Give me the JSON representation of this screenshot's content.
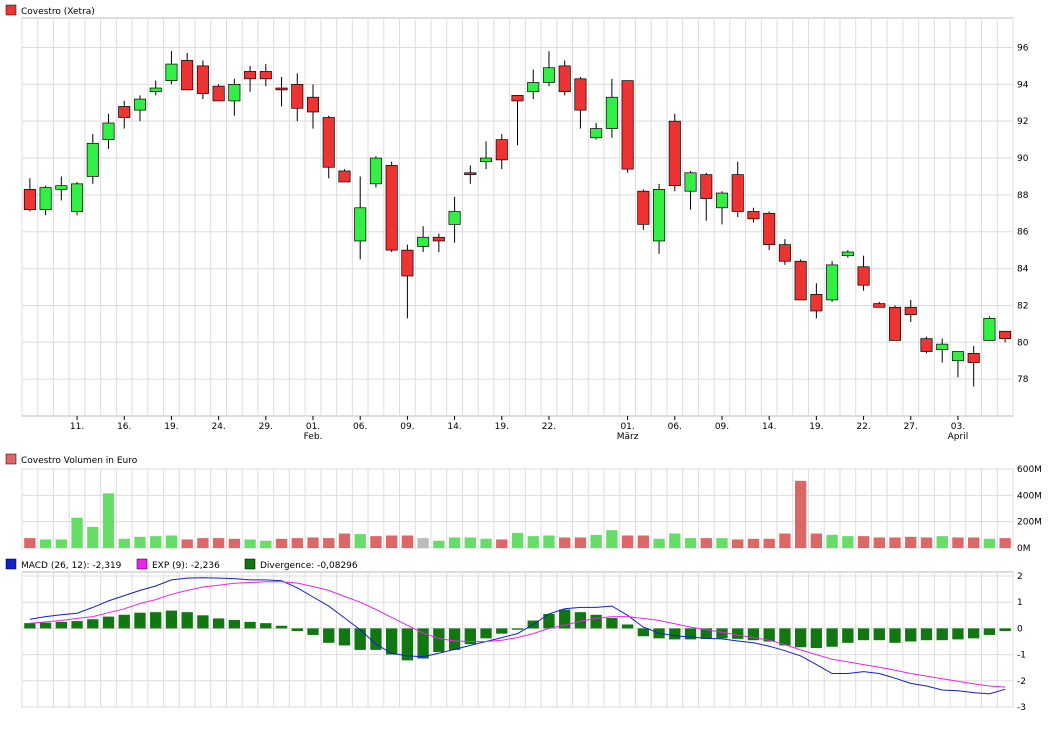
{
  "colors": {
    "up": "#33ee44",
    "down": "#ee3333",
    "grid": "#dddddd",
    "frame": "#bbbbbb",
    "macd": "#1020cc",
    "signal": "#ee22ee",
    "divergence": "#117711",
    "volume_up": "#66dd66",
    "volume_down": "#dd6666",
    "volume_neutral": "#bbbbbb"
  },
  "chart_data": [
    {
      "type": "candlestick",
      "legend": "Covestro (Xetra)",
      "ylim": [
        76,
        97.6
      ],
      "yticks": [
        78,
        80,
        82,
        84,
        86,
        88,
        90,
        92,
        94,
        96
      ],
      "ytick_labels": [
        "78",
        "80",
        "82",
        "84",
        "86",
        "88",
        "90",
        "92",
        "94",
        "96"
      ],
      "xtick_labels": [
        "11.",
        "16.",
        "19.",
        "24.",
        "29.",
        "01.",
        "06.",
        "09.",
        "14.",
        "19.",
        "22.",
        "01.",
        "06.",
        "09.",
        "14.",
        "19.",
        "22.",
        "27.",
        "03."
      ],
      "xtick_index": [
        3,
        6,
        9,
        12,
        15,
        18,
        21,
        24,
        27,
        30,
        33,
        38,
        41,
        44,
        47,
        50,
        53,
        56,
        59
      ],
      "month_labels": [
        {
          "index": 18,
          "text": "Feb."
        },
        {
          "index": 38,
          "text": "März"
        },
        {
          "index": 59,
          "text": "April"
        }
      ],
      "ohlc": [
        [
          88.3,
          88.9,
          87.1,
          87.2
        ],
        [
          87.2,
          88.5,
          86.9,
          88.4
        ],
        [
          88.3,
          89.0,
          87.7,
          88.5
        ],
        [
          87.1,
          88.7,
          86.9,
          88.6
        ],
        [
          89.0,
          91.3,
          88.6,
          90.8
        ],
        [
          91.0,
          92.4,
          90.5,
          91.9
        ],
        [
          92.8,
          93.1,
          91.6,
          92.2
        ],
        [
          92.6,
          93.4,
          92.0,
          93.2
        ],
        [
          93.6,
          94.2,
          93.4,
          93.8
        ],
        [
          94.2,
          95.8,
          94.0,
          95.1
        ],
        [
          95.3,
          95.7,
          93.8,
          93.7
        ],
        [
          95.0,
          95.3,
          93.2,
          93.5
        ],
        [
          93.9,
          94.0,
          93.1,
          93.1
        ],
        [
          93.1,
          94.3,
          92.3,
          94.0
        ],
        [
          94.7,
          95.0,
          93.6,
          94.3
        ],
        [
          94.7,
          95.1,
          93.9,
          94.3
        ],
        [
          93.8,
          94.4,
          92.8,
          93.7
        ],
        [
          94.0,
          94.6,
          92.0,
          92.7
        ],
        [
          93.3,
          94.0,
          91.6,
          92.5
        ],
        [
          92.2,
          92.3,
          88.9,
          89.5
        ],
        [
          89.3,
          89.4,
          88.7,
          88.7
        ],
        [
          85.5,
          89.0,
          84.5,
          87.3
        ],
        [
          88.6,
          90.1,
          88.4,
          90.0
        ],
        [
          89.6,
          89.8,
          84.9,
          85.0
        ],
        [
          85.0,
          85.3,
          81.3,
          83.6
        ],
        [
          85.2,
          86.3,
          84.9,
          85.7
        ],
        [
          85.7,
          85.9,
          84.9,
          85.5
        ],
        [
          86.4,
          87.9,
          85.4,
          87.1
        ],
        [
          89.2,
          89.6,
          88.6,
          89.1
        ],
        [
          89.8,
          90.9,
          89.4,
          90.0
        ],
        [
          91.0,
          91.3,
          89.4,
          89.9
        ],
        [
          93.4,
          93.4,
          90.7,
          93.1
        ],
        [
          93.6,
          94.8,
          93.2,
          94.1
        ],
        [
          94.1,
          95.8,
          93.9,
          94.9
        ],
        [
          95.0,
          95.3,
          93.4,
          93.6
        ],
        [
          94.3,
          94.4,
          91.6,
          92.6
        ],
        [
          91.1,
          91.9,
          91.0,
          91.6
        ],
        [
          91.6,
          94.3,
          91.1,
          93.3
        ],
        [
          94.2,
          94.2,
          89.2,
          89.4
        ],
        [
          88.2,
          88.3,
          86.1,
          86.4
        ],
        [
          85.5,
          88.6,
          84.8,
          88.3
        ],
        [
          92.0,
          92.4,
          88.2,
          88.5
        ],
        [
          88.2,
          89.3,
          87.2,
          89.2
        ],
        [
          89.1,
          89.2,
          86.6,
          87.8
        ],
        [
          87.3,
          88.2,
          86.4,
          88.1
        ],
        [
          89.1,
          89.8,
          86.8,
          87.1
        ],
        [
          87.1,
          87.3,
          86.5,
          86.7
        ],
        [
          87.0,
          87.1,
          85.0,
          85.3
        ],
        [
          85.3,
          85.6,
          84.2,
          84.4
        ],
        [
          84.4,
          84.5,
          82.3,
          82.3
        ],
        [
          82.6,
          83.2,
          81.3,
          81.7
        ],
        [
          82.3,
          84.4,
          82.2,
          84.2
        ],
        [
          84.7,
          85.0,
          84.6,
          84.9
        ],
        [
          84.1,
          84.7,
          82.8,
          83.1
        ],
        [
          82.1,
          82.2,
          81.9,
          81.9
        ],
        [
          81.9,
          82.0,
          80.1,
          80.1
        ],
        [
          81.9,
          82.3,
          81.1,
          81.5
        ],
        [
          80.2,
          80.3,
          79.4,
          79.5
        ],
        [
          79.6,
          80.2,
          78.9,
          79.9
        ],
        [
          79.0,
          79.4,
          78.1,
          79.5
        ],
        [
          79.4,
          79.8,
          77.6,
          78.9
        ],
        [
          80.1,
          81.4,
          80.1,
          81.3
        ],
        [
          80.6,
          80.6,
          80.0,
          80.2
        ]
      ]
    },
    {
      "type": "bar",
      "legend": "Covestro Volumen in Euro",
      "ylim": [
        0,
        600
      ],
      "yticks": [
        0,
        200,
        400,
        600
      ],
      "ytick_labels": [
        "0M",
        "200M",
        "400M",
        "600M"
      ],
      "values": [
        75,
        65,
        65,
        230,
        160,
        415,
        70,
        85,
        90,
        95,
        65,
        75,
        75,
        70,
        65,
        55,
        70,
        75,
        80,
        75,
        110,
        105,
        90,
        95,
        95,
        75,
        55,
        80,
        80,
        70,
        65,
        115,
        90,
        95,
        80,
        80,
        100,
        135,
        95,
        95,
        70,
        110,
        75,
        75,
        75,
        65,
        70,
        70,
        110,
        510,
        110,
        100,
        90,
        90,
        80,
        80,
        85,
        80,
        90,
        80,
        80,
        70,
        75
      ],
      "direction": [
        "d",
        "u",
        "u",
        "u",
        "u",
        "u",
        "u",
        "u",
        "u",
        "u",
        "d",
        "d",
        "d",
        "d",
        "u",
        "u",
        "d",
        "d",
        "d",
        "d",
        "d",
        "u",
        "d",
        "d",
        "d",
        "n",
        "u",
        "u",
        "u",
        "u",
        "d",
        "u",
        "u",
        "u",
        "d",
        "d",
        "u",
        "u",
        "d",
        "d",
        "u",
        "u",
        "u",
        "d",
        "u",
        "d",
        "d",
        "d",
        "d",
        "d",
        "d",
        "u",
        "u",
        "d",
        "d",
        "d",
        "d",
        "d",
        "u",
        "d",
        "d",
        "u",
        "d"
      ]
    },
    {
      "type": "line+bar",
      "ylim": [
        -3,
        2
      ],
      "yticks": [
        -3,
        -2,
        -1,
        0,
        1,
        2
      ],
      "ytick_labels": [
        "-3",
        "-2",
        "-1",
        "0",
        "1",
        "2"
      ],
      "legend_items": [
        "MACD (26, 12): -2,319",
        "EXP (9): -2,236",
        "Divergence: -0,08296"
      ],
      "series": [
        {
          "name": "MACD (26, 12)",
          "values": [
            0.35,
            0.45,
            0.52,
            0.58,
            0.8,
            1.05,
            1.25,
            1.45,
            1.62,
            1.85,
            1.92,
            1.93,
            1.92,
            1.9,
            1.85,
            1.85,
            1.82,
            1.55,
            1.2,
            0.85,
            0.4,
            -0.05,
            -0.6,
            -0.95,
            -1.05,
            -1.08,
            -0.95,
            -0.8,
            -0.65,
            -0.5,
            -0.35,
            -0.2,
            0.15,
            0.55,
            0.75,
            0.8,
            0.8,
            0.85,
            0.5,
            0.05,
            -0.18,
            -0.28,
            -0.33,
            -0.38,
            -0.4,
            -0.48,
            -0.55,
            -0.68,
            -0.85,
            -1.05,
            -1.38,
            -1.72,
            -1.72,
            -1.65,
            -1.72,
            -1.9,
            -2.1,
            -2.2,
            -2.35,
            -2.38,
            -2.45,
            -2.5,
            -2.32
          ]
        },
        {
          "name": "EXP (9)",
          "values": [
            0.2,
            0.25,
            0.3,
            0.38,
            0.45,
            0.6,
            0.75,
            0.95,
            1.1,
            1.3,
            1.45,
            1.58,
            1.65,
            1.72,
            1.75,
            1.78,
            1.78,
            1.73,
            1.6,
            1.45,
            1.22,
            1.0,
            0.72,
            0.42,
            0.12,
            -0.18,
            -0.38,
            -0.48,
            -0.5,
            -0.5,
            -0.45,
            -0.35,
            -0.2,
            0.0,
            0.12,
            0.28,
            0.38,
            0.45,
            0.45,
            0.38,
            0.3,
            0.18,
            0.05,
            -0.05,
            -0.15,
            -0.25,
            -0.35,
            -0.45,
            -0.62,
            -0.82,
            -1.0,
            -1.18,
            -1.28,
            -1.38,
            -1.48,
            -1.6,
            -1.72,
            -1.82,
            -1.92,
            -2.02,
            -2.12,
            -2.2,
            -2.24
          ]
        }
      ],
      "divergence": [
        0.2,
        0.22,
        0.25,
        0.28,
        0.35,
        0.45,
        0.52,
        0.6,
        0.62,
        0.68,
        0.62,
        0.5,
        0.38,
        0.32,
        0.25,
        0.2,
        0.1,
        -0.1,
        -0.25,
        -0.55,
        -0.65,
        -0.82,
        -0.82,
        -1.0,
        -1.22,
        -1.15,
        -0.9,
        -0.82,
        -0.6,
        -0.38,
        -0.2,
        -0.05,
        0.3,
        0.55,
        0.72,
        0.62,
        0.52,
        0.4,
        0.15,
        -0.3,
        -0.38,
        -0.42,
        -0.42,
        -0.4,
        -0.38,
        -0.4,
        -0.45,
        -0.5,
        -0.65,
        -0.72,
        -0.75,
        -0.7,
        -0.55,
        -0.45,
        -0.45,
        -0.55,
        -0.5,
        -0.45,
        -0.45,
        -0.42,
        -0.38,
        -0.25,
        -0.1
      ]
    }
  ]
}
